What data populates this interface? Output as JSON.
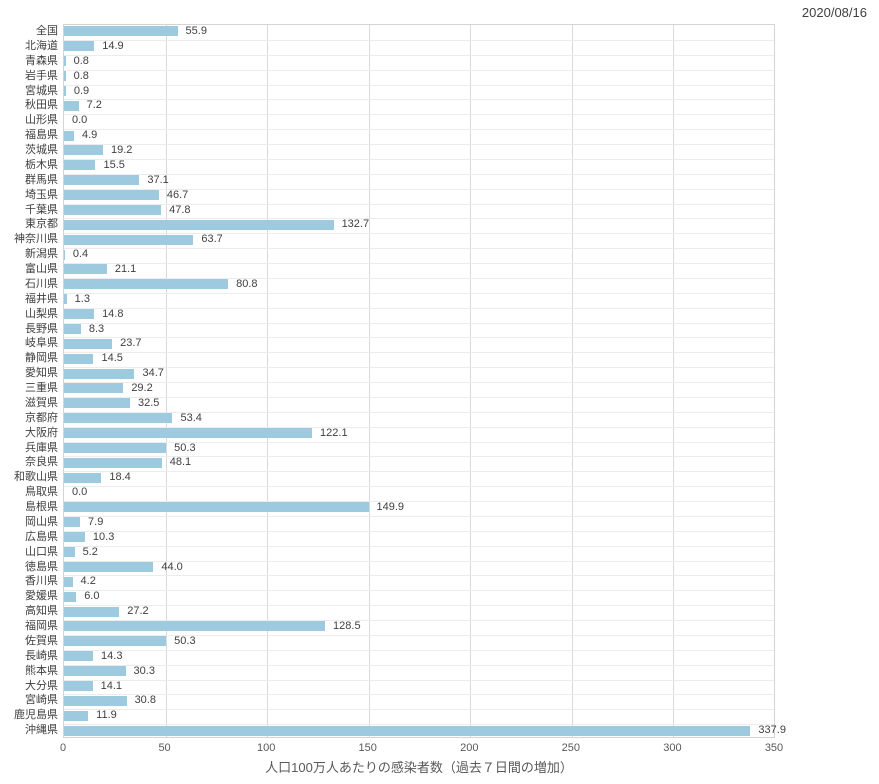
{
  "header": {
    "date_label": "2020/08/16"
  },
  "chart_data": {
    "type": "bar",
    "orientation": "horizontal",
    "title": "",
    "xlabel": "人口100万人あたりの感染者数（過去７日間の増加）",
    "ylabel": "",
    "xlim": [
      0,
      350
    ],
    "xticks": [
      0,
      50,
      100,
      150,
      200,
      250,
      300,
      350
    ],
    "grid": true,
    "legend_position": "none",
    "bar_color": "#9dcade",
    "gridline_color": "#d9d9d9",
    "row_line_color": "#ececec",
    "categories": [
      "全国",
      "北海道",
      "青森県",
      "岩手県",
      "宮城県",
      "秋田県",
      "山形県",
      "福島県",
      "茨城県",
      "栃木県",
      "群馬県",
      "埼玉県",
      "千葉県",
      "東京都",
      "神奈川県",
      "新潟県",
      "富山県",
      "石川県",
      "福井県",
      "山梨県",
      "長野県",
      "岐阜県",
      "静岡県",
      "愛知県",
      "三重県",
      "滋賀県",
      "京都府",
      "大阪府",
      "兵庫県",
      "奈良県",
      "和歌山県",
      "鳥取県",
      "島根県",
      "岡山県",
      "広島県",
      "山口県",
      "徳島県",
      "香川県",
      "愛媛県",
      "高知県",
      "福岡県",
      "佐賀県",
      "長崎県",
      "熊本県",
      "大分県",
      "宮崎県",
      "鹿児島県",
      "沖縄県"
    ],
    "values": [
      55.9,
      14.9,
      0.8,
      0.8,
      0.9,
      7.2,
      0.0,
      4.9,
      19.2,
      15.5,
      37.1,
      46.7,
      47.8,
      132.7,
      63.7,
      0.4,
      21.1,
      80.8,
      1.3,
      14.8,
      8.3,
      23.7,
      14.5,
      34.7,
      29.2,
      32.5,
      53.4,
      122.1,
      50.3,
      48.1,
      18.4,
      0.0,
      149.9,
      7.9,
      10.3,
      5.2,
      44.0,
      4.2,
      6.0,
      27.2,
      128.5,
      50.3,
      14.3,
      30.3,
      14.1,
      30.8,
      11.9,
      337.9
    ]
  }
}
